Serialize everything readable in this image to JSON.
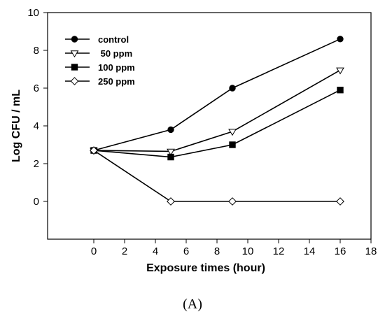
{
  "caption": "(A)",
  "chart_data": {
    "type": "line",
    "title": "",
    "xlabel": "Exposure times (hour)",
    "ylabel": "Log CFU / mL",
    "xlim": [
      -3,
      18
    ],
    "ylim": [
      -2,
      10
    ],
    "x_ticks": [
      0,
      2,
      4,
      6,
      8,
      10,
      12,
      14,
      16,
      18
    ],
    "y_ticks": [
      0,
      2,
      4,
      6,
      8,
      10
    ],
    "grid": false,
    "legend_position": "top-left",
    "x": [
      0,
      5,
      9,
      16
    ],
    "series": [
      {
        "name": "control",
        "marker": "filled-circle",
        "values": [
          2.7,
          3.8,
          6.0,
          8.6
        ]
      },
      {
        "name": " 50 ppm",
        "marker": "open-triangle-down",
        "values": [
          2.7,
          2.65,
          3.7,
          6.95
        ]
      },
      {
        "name": "100 ppm",
        "marker": "filled-square",
        "values": [
          2.7,
          2.35,
          3.0,
          5.9
        ]
      },
      {
        "name": "250 ppm",
        "marker": "open-diamond",
        "values": [
          2.7,
          0.0,
          0.0,
          0.0
        ]
      }
    ]
  }
}
